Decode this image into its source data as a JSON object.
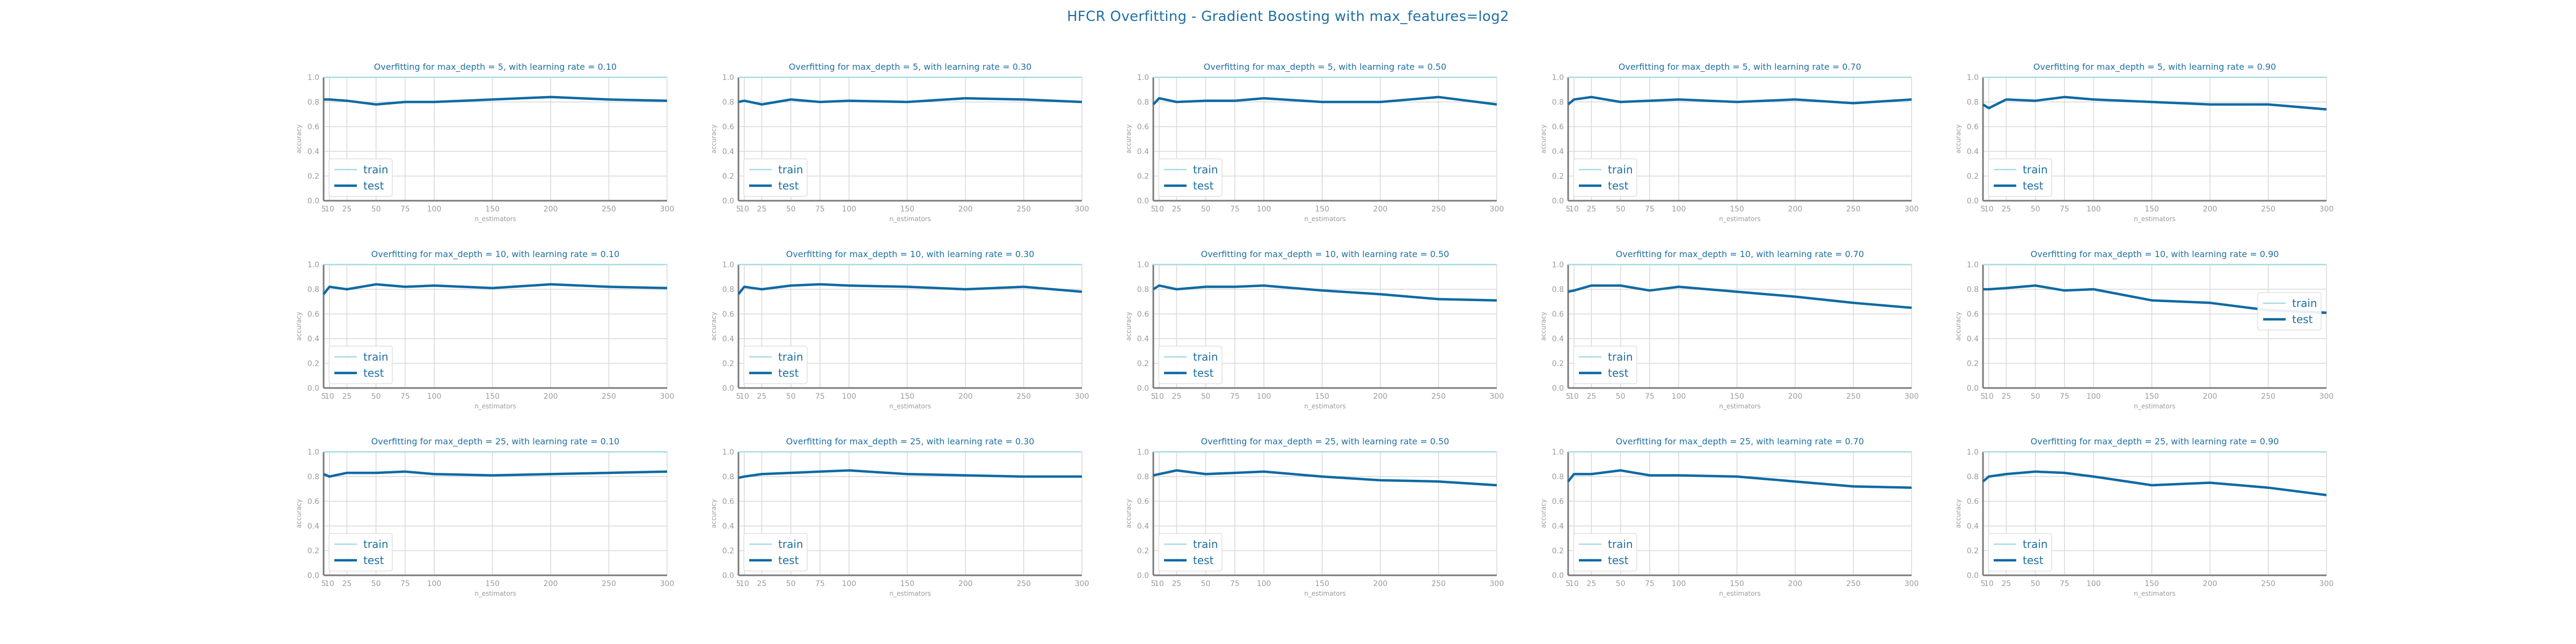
{
  "figure": {
    "suptitle": "HFCR Overfitting - Gradient Boosting with max_features=log2",
    "colors": {
      "train": "#a6dce0",
      "test": "#0e6aa3",
      "title": "#1f6fa1",
      "tick": "#9b9b9b",
      "grid": "#d8d8d8",
      "axis": "#7a7a7a"
    }
  },
  "chart_data": [
    {
      "type": "line",
      "title": "Overfitting for max_depth = 5, with learning rate = 0.10",
      "xlabel": "n_estimators",
      "ylabel": "accuracy",
      "ylim": [
        0,
        1
      ],
      "yticks": [
        0.0,
        0.2,
        0.4,
        0.6,
        0.8,
        1.0
      ],
      "x": [
        5,
        10,
        25,
        50,
        75,
        100,
        150,
        200,
        250,
        300
      ],
      "xticks": [
        5,
        10,
        25,
        50,
        75,
        100,
        150,
        200,
        250,
        300
      ],
      "legend": "lower-left",
      "series": [
        {
          "name": "train",
          "values": [
            1,
            1,
            1,
            1,
            1,
            1,
            1,
            1,
            1,
            1
          ]
        },
        {
          "name": "test",
          "values": [
            0.82,
            0.82,
            0.81,
            0.78,
            0.8,
            0.8,
            0.82,
            0.84,
            0.82,
            0.81
          ]
        }
      ]
    },
    {
      "type": "line",
      "title": "Overfitting for max_depth = 5, with learning rate = 0.30",
      "xlabel": "n_estimators",
      "ylabel": "accuracy",
      "ylim": [
        0,
        1
      ],
      "yticks": [
        0.0,
        0.2,
        0.4,
        0.6,
        0.8,
        1.0
      ],
      "x": [
        5,
        10,
        25,
        50,
        75,
        100,
        150,
        200,
        250,
        300
      ],
      "xticks": [
        5,
        10,
        25,
        50,
        75,
        100,
        150,
        200,
        250,
        300
      ],
      "legend": "lower-left",
      "series": [
        {
          "name": "train",
          "values": [
            1,
            1,
            1,
            1,
            1,
            1,
            1,
            1,
            1,
            1
          ]
        },
        {
          "name": "test",
          "values": [
            0.8,
            0.81,
            0.78,
            0.82,
            0.8,
            0.81,
            0.8,
            0.83,
            0.82,
            0.8
          ]
        }
      ]
    },
    {
      "type": "line",
      "title": "Overfitting for max_depth = 5, with learning rate = 0.50",
      "xlabel": "n_estimators",
      "ylabel": "accuracy",
      "ylim": [
        0,
        1
      ],
      "yticks": [
        0.0,
        0.2,
        0.4,
        0.6,
        0.8,
        1.0
      ],
      "x": [
        5,
        10,
        25,
        50,
        75,
        100,
        150,
        200,
        250,
        300
      ],
      "xticks": [
        5,
        10,
        25,
        50,
        75,
        100,
        150,
        200,
        250,
        300
      ],
      "legend": "lower-left",
      "series": [
        {
          "name": "train",
          "values": [
            1,
            1,
            1,
            1,
            1,
            1,
            1,
            1,
            1,
            1
          ]
        },
        {
          "name": "test",
          "values": [
            0.78,
            0.83,
            0.8,
            0.81,
            0.81,
            0.83,
            0.8,
            0.8,
            0.84,
            0.78
          ]
        }
      ]
    },
    {
      "type": "line",
      "title": "Overfitting for max_depth = 5, with learning rate = 0.70",
      "xlabel": "n_estimators",
      "ylabel": "accuracy",
      "ylim": [
        0,
        1
      ],
      "yticks": [
        0.0,
        0.2,
        0.4,
        0.6,
        0.8,
        1.0
      ],
      "x": [
        5,
        10,
        25,
        50,
        75,
        100,
        150,
        200,
        250,
        300
      ],
      "xticks": [
        5,
        10,
        25,
        50,
        75,
        100,
        150,
        200,
        250,
        300
      ],
      "legend": "lower-left",
      "series": [
        {
          "name": "train",
          "values": [
            1,
            1,
            1,
            1,
            1,
            1,
            1,
            1,
            1,
            1
          ]
        },
        {
          "name": "test",
          "values": [
            0.78,
            0.82,
            0.84,
            0.8,
            0.81,
            0.82,
            0.8,
            0.82,
            0.79,
            0.82
          ]
        }
      ]
    },
    {
      "type": "line",
      "title": "Overfitting for max_depth = 5, with learning rate = 0.90",
      "xlabel": "n_estimators",
      "ylabel": "accuracy",
      "ylim": [
        0,
        1
      ],
      "yticks": [
        0.0,
        0.2,
        0.4,
        0.6,
        0.8,
        1.0
      ],
      "x": [
        5,
        10,
        25,
        50,
        75,
        100,
        150,
        200,
        250,
        300
      ],
      "xticks": [
        5,
        10,
        25,
        50,
        75,
        100,
        150,
        200,
        250,
        300
      ],
      "legend": "lower-left",
      "series": [
        {
          "name": "train",
          "values": [
            1,
            1,
            1,
            1,
            1,
            1,
            1,
            1,
            1,
            1
          ]
        },
        {
          "name": "test",
          "values": [
            0.78,
            0.75,
            0.82,
            0.81,
            0.84,
            0.82,
            0.8,
            0.78,
            0.78,
            0.74
          ]
        }
      ]
    },
    {
      "type": "line",
      "title": "Overfitting for max_depth = 10, with learning rate = 0.10",
      "xlabel": "n_estimators",
      "ylabel": "accuracy",
      "ylim": [
        0,
        1
      ],
      "yticks": [
        0.0,
        0.2,
        0.4,
        0.6,
        0.8,
        1.0
      ],
      "x": [
        5,
        10,
        25,
        50,
        75,
        100,
        150,
        200,
        250,
        300
      ],
      "xticks": [
        5,
        10,
        25,
        50,
        75,
        100,
        150,
        200,
        250,
        300
      ],
      "legend": "lower-left",
      "series": [
        {
          "name": "train",
          "values": [
            1,
            1,
            1,
            1,
            1,
            1,
            1,
            1,
            1,
            1
          ]
        },
        {
          "name": "test",
          "values": [
            0.76,
            0.82,
            0.8,
            0.84,
            0.82,
            0.83,
            0.81,
            0.84,
            0.82,
            0.81
          ]
        }
      ]
    },
    {
      "type": "line",
      "title": "Overfitting for max_depth = 10, with learning rate = 0.30",
      "xlabel": "n_estimators",
      "ylabel": "accuracy",
      "ylim": [
        0,
        1
      ],
      "yticks": [
        0.0,
        0.2,
        0.4,
        0.6,
        0.8,
        1.0
      ],
      "x": [
        5,
        10,
        25,
        50,
        75,
        100,
        150,
        200,
        250,
        300
      ],
      "xticks": [
        5,
        10,
        25,
        50,
        75,
        100,
        150,
        200,
        250,
        300
      ],
      "legend": "lower-left",
      "series": [
        {
          "name": "train",
          "values": [
            1,
            1,
            1,
            1,
            1,
            1,
            1,
            1,
            1,
            1
          ]
        },
        {
          "name": "test",
          "values": [
            0.76,
            0.82,
            0.8,
            0.83,
            0.84,
            0.83,
            0.82,
            0.8,
            0.82,
            0.78
          ]
        }
      ]
    },
    {
      "type": "line",
      "title": "Overfitting for max_depth = 10, with learning rate = 0.50",
      "xlabel": "n_estimators",
      "ylabel": "accuracy",
      "ylim": [
        0,
        1
      ],
      "yticks": [
        0.0,
        0.2,
        0.4,
        0.6,
        0.8,
        1.0
      ],
      "x": [
        5,
        10,
        25,
        50,
        75,
        100,
        150,
        200,
        250,
        300
      ],
      "xticks": [
        5,
        10,
        25,
        50,
        75,
        100,
        150,
        200,
        250,
        300
      ],
      "legend": "lower-left",
      "series": [
        {
          "name": "train",
          "values": [
            1,
            1,
            1,
            1,
            1,
            1,
            1,
            1,
            1,
            1
          ]
        },
        {
          "name": "test",
          "values": [
            0.8,
            0.83,
            0.8,
            0.82,
            0.82,
            0.83,
            0.79,
            0.76,
            0.72,
            0.71
          ]
        }
      ]
    },
    {
      "type": "line",
      "title": "Overfitting for max_depth = 10, with learning rate = 0.70",
      "xlabel": "n_estimators",
      "ylabel": "accuracy",
      "ylim": [
        0,
        1
      ],
      "yticks": [
        0.0,
        0.2,
        0.4,
        0.6,
        0.8,
        1.0
      ],
      "x": [
        5,
        10,
        25,
        50,
        75,
        100,
        150,
        200,
        250,
        300
      ],
      "xticks": [
        5,
        10,
        25,
        50,
        75,
        100,
        150,
        200,
        250,
        300
      ],
      "legend": "lower-left",
      "series": [
        {
          "name": "train",
          "values": [
            1,
            1,
            1,
            1,
            1,
            1,
            1,
            1,
            1,
            1
          ]
        },
        {
          "name": "test",
          "values": [
            0.78,
            0.79,
            0.83,
            0.83,
            0.79,
            0.82,
            0.78,
            0.74,
            0.69,
            0.65
          ]
        }
      ]
    },
    {
      "type": "line",
      "title": "Overfitting for max_depth = 10, with learning rate = 0.90",
      "xlabel": "n_estimators",
      "ylabel": "accuracy",
      "ylim": [
        0,
        1
      ],
      "yticks": [
        0.0,
        0.2,
        0.4,
        0.6,
        0.8,
        1.0
      ],
      "x": [
        5,
        10,
        25,
        50,
        75,
        100,
        150,
        200,
        250,
        300
      ],
      "xticks": [
        5,
        10,
        25,
        50,
        75,
        100,
        150,
        200,
        250,
        300
      ],
      "legend": "upper-right",
      "series": [
        {
          "name": "train",
          "values": [
            1,
            1,
            1,
            1,
            1,
            1,
            1,
            1,
            1,
            1
          ]
        },
        {
          "name": "test",
          "values": [
            0.8,
            0.8,
            0.81,
            0.83,
            0.79,
            0.8,
            0.71,
            0.69,
            0.63,
            0.61
          ]
        }
      ]
    },
    {
      "type": "line",
      "title": "Overfitting for max_depth = 25, with learning rate = 0.10",
      "xlabel": "n_estimators",
      "ylabel": "accuracy",
      "ylim": [
        0,
        1
      ],
      "yticks": [
        0.0,
        0.2,
        0.4,
        0.6,
        0.8,
        1.0
      ],
      "x": [
        5,
        10,
        25,
        50,
        75,
        100,
        150,
        200,
        250,
        300
      ],
      "xticks": [
        5,
        10,
        25,
        50,
        75,
        100,
        150,
        200,
        250,
        300
      ],
      "legend": "lower-left",
      "series": [
        {
          "name": "train",
          "values": [
            1,
            1,
            1,
            1,
            1,
            1,
            1,
            1,
            1,
            1
          ]
        },
        {
          "name": "test",
          "values": [
            0.82,
            0.8,
            0.83,
            0.83,
            0.84,
            0.82,
            0.81,
            0.82,
            0.83,
            0.84
          ]
        }
      ]
    },
    {
      "type": "line",
      "title": "Overfitting for max_depth = 25, with learning rate = 0.30",
      "xlabel": "n_estimators",
      "ylabel": "accuracy",
      "ylim": [
        0,
        1
      ],
      "yticks": [
        0.0,
        0.2,
        0.4,
        0.6,
        0.8,
        1.0
      ],
      "x": [
        5,
        10,
        25,
        50,
        75,
        100,
        150,
        200,
        250,
        300
      ],
      "xticks": [
        5,
        10,
        25,
        50,
        75,
        100,
        150,
        200,
        250,
        300
      ],
      "legend": "lower-left",
      "series": [
        {
          "name": "train",
          "values": [
            1,
            1,
            1,
            1,
            1,
            1,
            1,
            1,
            1,
            1
          ]
        },
        {
          "name": "test",
          "values": [
            0.79,
            0.8,
            0.82,
            0.83,
            0.84,
            0.85,
            0.82,
            0.81,
            0.8,
            0.8
          ]
        }
      ]
    },
    {
      "type": "line",
      "title": "Overfitting for max_depth = 25, with learning rate = 0.50",
      "xlabel": "n_estimators",
      "ylabel": "accuracy",
      "ylim": [
        0,
        1
      ],
      "yticks": [
        0.0,
        0.2,
        0.4,
        0.6,
        0.8,
        1.0
      ],
      "x": [
        5,
        10,
        25,
        50,
        75,
        100,
        150,
        200,
        250,
        300
      ],
      "xticks": [
        5,
        10,
        25,
        50,
        75,
        100,
        150,
        200,
        250,
        300
      ],
      "legend": "lower-left",
      "series": [
        {
          "name": "train",
          "values": [
            1,
            1,
            1,
            1,
            1,
            1,
            1,
            1,
            1,
            1
          ]
        },
        {
          "name": "test",
          "values": [
            0.81,
            0.82,
            0.85,
            0.82,
            0.83,
            0.84,
            0.8,
            0.77,
            0.76,
            0.73
          ]
        }
      ]
    },
    {
      "type": "line",
      "title": "Overfitting for max_depth = 25, with learning rate = 0.70",
      "xlabel": "n_estimators",
      "ylabel": "accuracy",
      "ylim": [
        0,
        1
      ],
      "yticks": [
        0.0,
        0.2,
        0.4,
        0.6,
        0.8,
        1.0
      ],
      "x": [
        5,
        10,
        25,
        50,
        75,
        100,
        150,
        200,
        250,
        300
      ],
      "xticks": [
        5,
        10,
        25,
        50,
        75,
        100,
        150,
        200,
        250,
        300
      ],
      "legend": "lower-left",
      "series": [
        {
          "name": "train",
          "values": [
            1,
            1,
            1,
            1,
            1,
            1,
            1,
            1,
            1,
            1
          ]
        },
        {
          "name": "test",
          "values": [
            0.76,
            0.82,
            0.82,
            0.85,
            0.81,
            0.81,
            0.8,
            0.76,
            0.72,
            0.71
          ]
        }
      ]
    },
    {
      "type": "line",
      "title": "Overfitting for max_depth = 25, with learning rate = 0.90",
      "xlabel": "n_estimators",
      "ylabel": "accuracy",
      "ylim": [
        0,
        1
      ],
      "yticks": [
        0.0,
        0.2,
        0.4,
        0.6,
        0.8,
        1.0
      ],
      "x": [
        5,
        10,
        25,
        50,
        75,
        100,
        150,
        200,
        250,
        300
      ],
      "xticks": [
        5,
        10,
        25,
        50,
        75,
        100,
        150,
        200,
        250,
        300
      ],
      "legend": "lower-left",
      "series": [
        {
          "name": "train",
          "values": [
            1,
            1,
            1,
            1,
            1,
            1,
            1,
            1,
            1,
            1
          ]
        },
        {
          "name": "test",
          "values": [
            0.76,
            0.8,
            0.82,
            0.84,
            0.83,
            0.8,
            0.73,
            0.75,
            0.71,
            0.65
          ]
        }
      ]
    }
  ]
}
